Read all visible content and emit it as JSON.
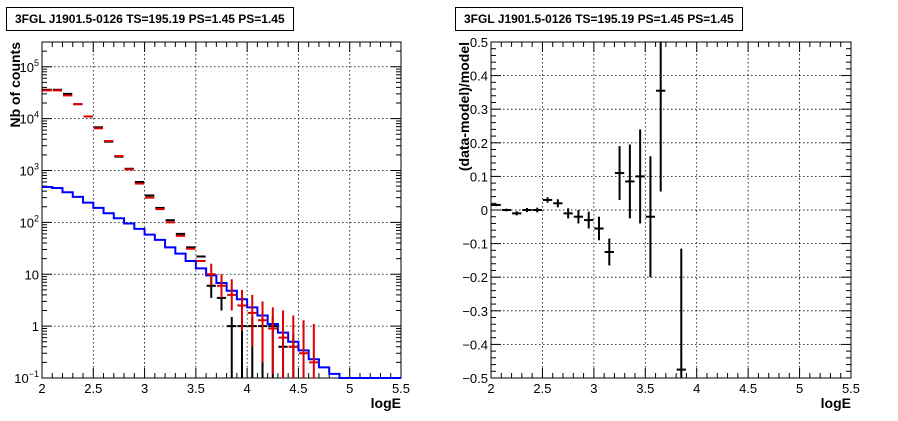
{
  "chart_data": [
    {
      "type": "histogram",
      "title": "3FGL J1901.5-0126 TS=195.19 PS=1.45 PS=1.45",
      "xlabel": "logE",
      "ylabel": "Nb of counts",
      "xlim": [
        2,
        5.5
      ],
      "ylim": [
        0.1,
        300000
      ],
      "yscale": "log",
      "grid": true,
      "x_ticks": [
        "2",
        "2.5",
        "3",
        "3.5",
        "4",
        "4.5",
        "5",
        "5.5"
      ],
      "y_ticks": [
        {
          "value": 0.1,
          "label": "10",
          "exp": "−1"
        },
        {
          "value": 1,
          "label": "1",
          "exp": ""
        },
        {
          "value": 10,
          "label": "10",
          "exp": ""
        },
        {
          "value": 100,
          "label": "10",
          "exp": "2"
        },
        {
          "value": 1000,
          "label": "10",
          "exp": "3"
        },
        {
          "value": 10000,
          "label": "10",
          "exp": "4"
        },
        {
          "value": 100000,
          "label": "10",
          "exp": "5"
        }
      ],
      "bin_edges": [
        2.0,
        2.1,
        2.2,
        2.3,
        2.4,
        2.5,
        2.6,
        2.7,
        2.8,
        2.9,
        3.0,
        3.1,
        3.2,
        3.3,
        3.4,
        3.5,
        3.6,
        3.7,
        3.8,
        3.9,
        4.0,
        4.1,
        4.2,
        4.3,
        4.4,
        4.5,
        4.6,
        4.7,
        4.8,
        4.9,
        5.0,
        5.1,
        5.2,
        5.3,
        5.4,
        5.5
      ],
      "series": [
        {
          "kind": "step",
          "color": "#0000ff",
          "values": [
            480,
            460,
            380,
            310,
            240,
            190,
            150,
            120,
            95,
            75,
            58,
            46,
            33,
            25,
            18,
            13,
            9.5,
            6.8,
            4.8,
            3.3,
            2.3,
            1.6,
            1.1,
            0.75,
            0.5,
            0.34,
            0.23,
            0.16,
            0.12,
            0.1,
            0.1,
            0.1,
            0.1,
            0.1,
            0.1
          ]
        },
        {
          "kind": "points",
          "color": "#000000",
          "x": [
            2.05,
            2.15,
            2.25,
            2.35,
            2.45,
            2.55,
            2.65,
            2.75,
            2.85,
            2.95,
            3.05,
            3.15,
            3.25,
            3.35,
            3.45,
            3.55,
            3.65,
            3.75,
            3.85,
            3.95,
            4.05,
            4.15,
            4.25,
            4.35,
            4.45
          ],
          "y": [
            36000,
            36000,
            30000,
            19000,
            11000,
            6800,
            3600,
            1850,
            1080,
            600,
            330,
            190,
            110,
            60,
            33,
            22,
            6,
            3.5,
            1,
            1,
            1,
            1,
            1,
            0.4,
            0.4
          ],
          "err_low": [
            36000,
            36000,
            30000,
            19000,
            11000,
            6800,
            3600,
            1850,
            1080,
            600,
            330,
            190,
            110,
            60,
            33,
            22,
            3.5,
            2,
            0.1,
            0.1,
            0.1,
            0.1,
            0.1,
            0.1,
            0.1
          ],
          "err_high": [
            36000,
            36000,
            30000,
            19000,
            11000,
            6800,
            3600,
            1850,
            1080,
            600,
            330,
            190,
            110,
            60,
            33,
            22,
            9,
            6,
            1.5,
            1.5,
            1.5,
            1.5,
            1.5,
            0.7,
            0.7
          ]
        },
        {
          "kind": "points",
          "color": "#dd0000",
          "x": [
            2.05,
            2.15,
            2.25,
            2.35,
            2.45,
            2.55,
            2.65,
            2.75,
            2.85,
            2.95,
            3.05,
            3.15,
            3.25,
            3.35,
            3.45,
            3.55,
            3.65,
            3.75,
            3.85,
            3.95,
            4.05,
            4.15,
            4.25,
            4.35,
            4.45,
            4.55,
            4.65
          ],
          "y": [
            35000,
            35000,
            28000,
            19000,
            11000,
            6500,
            3700,
            1900,
            1050,
            560,
            300,
            180,
            100,
            55,
            31,
            18,
            10,
            6,
            4,
            2.5,
            1.8,
            1.3,
            0.9,
            0.6,
            0.4,
            0.3,
            0.2
          ],
          "err_low": [
            35000,
            35000,
            28000,
            19000,
            11000,
            6500,
            3700,
            1900,
            1050,
            560,
            300,
            180,
            100,
            55,
            31,
            18,
            6,
            3.5,
            2,
            0.8,
            0.4,
            0.2,
            0.12,
            0.1,
            0.1,
            0.1,
            0.1
          ],
          "err_high": [
            35000,
            35000,
            28000,
            19000,
            11000,
            6500,
            3700,
            1900,
            1050,
            560,
            300,
            180,
            100,
            55,
            31,
            18,
            16,
            10,
            8,
            5,
            4,
            3,
            2.3,
            2,
            1.6,
            1.3,
            1.1
          ]
        }
      ]
    },
    {
      "type": "scatter",
      "title": "3FGL J1901.5-0126 TS=195.19 PS=1.45 PS=1.45",
      "xlabel": "logE",
      "ylabel": "(data-model)/model",
      "xlim": [
        2,
        5.5
      ],
      "ylim": [
        -0.5,
        0.5
      ],
      "grid": true,
      "x_ticks": [
        "2",
        "2.5",
        "3",
        "3.5",
        "4",
        "4.5",
        "5",
        "5.5"
      ],
      "y_ticks": [
        {
          "value": -0.5,
          "label": "−0.5"
        },
        {
          "value": -0.4,
          "label": "−0.4"
        },
        {
          "value": -0.3,
          "label": "−0.3"
        },
        {
          "value": -0.2,
          "label": "−0.2"
        },
        {
          "value": -0.1,
          "label": "−0.1"
        },
        {
          "value": 0,
          "label": "0"
        },
        {
          "value": 0.1,
          "label": "0.1"
        },
        {
          "value": 0.2,
          "label": "0.2"
        },
        {
          "value": 0.3,
          "label": "0.3"
        },
        {
          "value": 0.4,
          "label": "0.4"
        },
        {
          "value": 0.5,
          "label": "0.5"
        }
      ],
      "series": [
        {
          "color": "#000000",
          "x": [
            2.05,
            2.15,
            2.25,
            2.35,
            2.45,
            2.55,
            2.65,
            2.75,
            2.85,
            2.95,
            3.05,
            3.15,
            3.25,
            3.35,
            3.45,
            3.55,
            3.65,
            3.85
          ],
          "y": [
            0.015,
            0.0,
            -0.01,
            0.0,
            0.0,
            0.03,
            0.02,
            -0.01,
            -0.02,
            -0.03,
            -0.055,
            -0.125,
            0.11,
            0.085,
            0.1,
            -0.02,
            0.355,
            -0.475
          ],
          "err": [
            0.004,
            0.004,
            0.006,
            0.006,
            0.007,
            0.008,
            0.012,
            0.015,
            0.02,
            0.025,
            0.035,
            0.04,
            0.08,
            0.11,
            0.14,
            0.18,
            0.3,
            0.36
          ]
        }
      ]
    }
  ]
}
